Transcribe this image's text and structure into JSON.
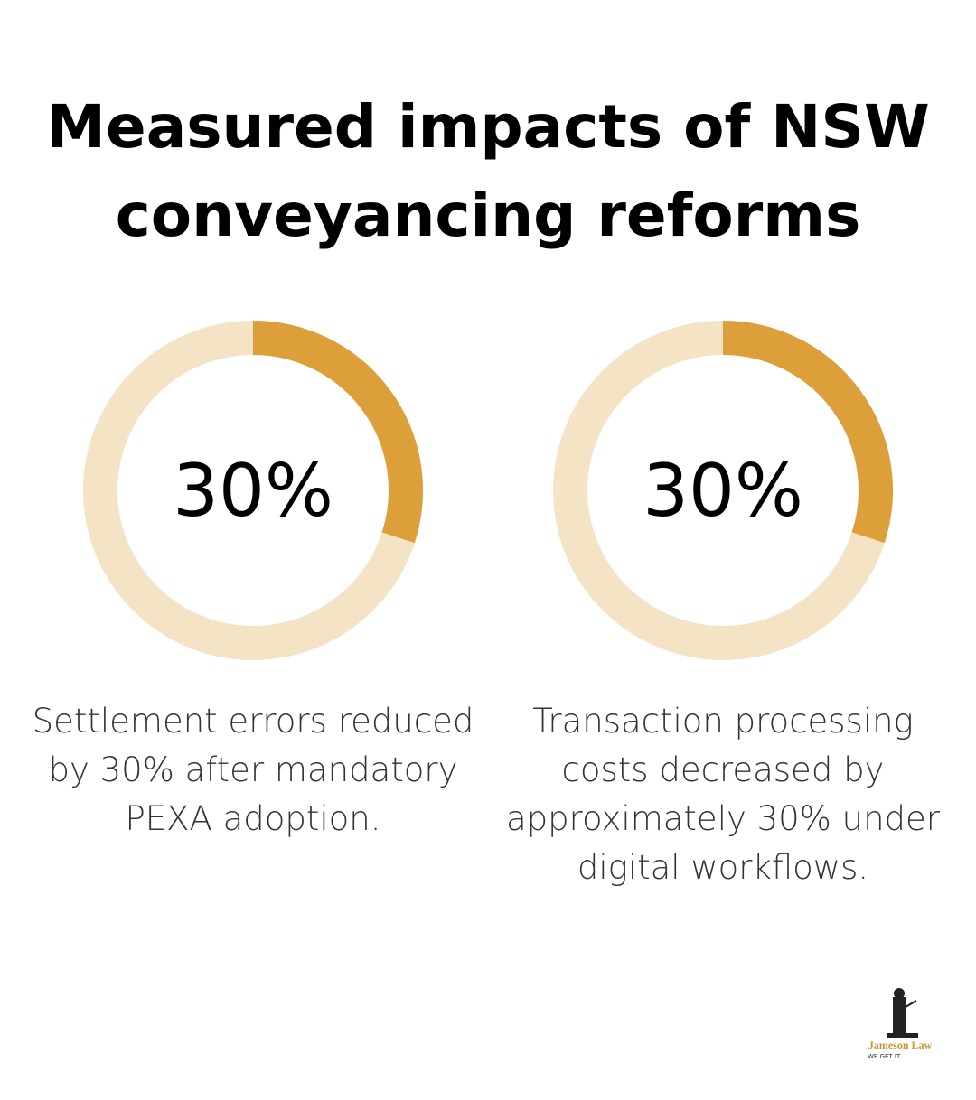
{
  "title": "Measured impacts of NSW conveyancing reforms",
  "chart_data": [
    {
      "type": "donut",
      "values": [
        30
      ],
      "value_labels": [
        "30%"
      ],
      "ylim": [
        0,
        100
      ],
      "color": "#DD9F3A",
      "track_color": "#F4E3C5",
      "description": [
        "Settlement errors reduced",
        "by 30% after mandatory",
        "PEXA adoption."
      ]
    },
    {
      "type": "donut",
      "values": [
        30
      ],
      "value_labels": [
        "30%"
      ],
      "ylim": [
        0,
        100
      ],
      "color": "#DD9F3A",
      "track_color": "#F4E3C5",
      "description": [
        "Transaction processing",
        "costs decreased by",
        "approximately 30% under",
        "digital workflows."
      ]
    }
  ],
  "logo": {
    "name": "Jameson Law",
    "tagline": "WE GET IT"
  }
}
